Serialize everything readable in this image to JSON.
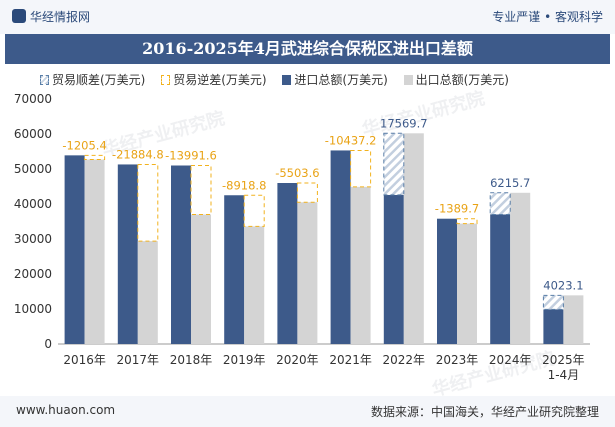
{
  "header": {
    "brand": "华经情报网",
    "tags": "专业严谨 • 客观科学"
  },
  "chart_data": {
    "type": "bar",
    "title": "2016-2025年4月武进综合保税区进出口差额",
    "categories": [
      "2016年",
      "2017年",
      "2018年",
      "2019年",
      "2020年",
      "2021年",
      "2022年",
      "2023年",
      "2024年",
      "2025年 1-4月"
    ],
    "series": [
      {
        "name": "进口总额(万美元)",
        "color": "#3d5a8a",
        "values": [
          53900,
          51300,
          51000,
          42500,
          46000,
          55300,
          42600,
          35800,
          37000,
          9900
        ]
      },
      {
        "name": "出口总额(万美元)",
        "color": "#d4d4d4",
        "values": [
          52700,
          29400,
          37000,
          33600,
          40500,
          44900,
          60200,
          34400,
          43200,
          13900
        ]
      }
    ],
    "balance": {
      "labels": [
        "-1205.4",
        "-21884.8",
        "-13991.6",
        "-8918.8",
        "-5503.6",
        "-10437.2",
        "17569.7",
        "-1389.7",
        "6215.7",
        "4023.1"
      ],
      "values": [
        -1205.4,
        -21884.8,
        -13991.6,
        -8918.8,
        -5503.6,
        -10437.2,
        17569.7,
        -1389.7,
        6215.7,
        4023.1
      ]
    },
    "legend": [
      "贸易顺差(万美元)",
      "贸易逆差(万美元)",
      "进口总额(万美元)",
      "出口总额(万美元)"
    ],
    "ylim": [
      0,
      70000
    ],
    "yticks": [
      0,
      10000,
      20000,
      30000,
      40000,
      50000,
      60000,
      70000
    ],
    "colors": {
      "surplus": "#5a7fa8",
      "deficit": "#f2b21e",
      "deficit_text": "#e9a316",
      "surplus_text": "#3d5a8a"
    }
  },
  "watermark": "华经产业研究院",
  "footer": {
    "site": "www.huaon.com",
    "source": "数据来源：中国海关，华经产业研究院整理"
  }
}
